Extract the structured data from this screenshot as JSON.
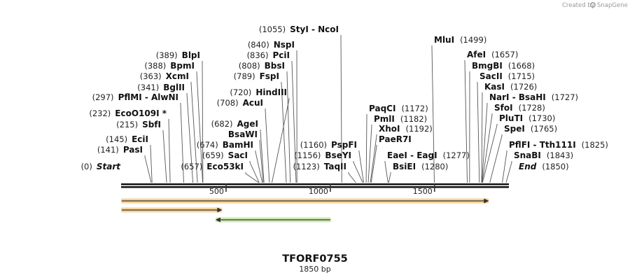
{
  "credit": {
    "text": "Created by",
    "brand": "SnapGene"
  },
  "plasmid": {
    "name": "TFORF0755",
    "length_label": "1850 bp",
    "length": 1850
  },
  "axis": {
    "ticks": [
      {
        "pos": 500,
        "label": "500"
      },
      {
        "pos": 1000,
        "label": "1000"
      },
      {
        "pos": 1500,
        "label": "1500"
      }
    ]
  },
  "colors": {
    "backbone": "#111111",
    "feature_orange": "#e8a33a",
    "feature_green": "#7ac943",
    "tick": "#444444"
  },
  "sites": [
    {
      "name": "Start",
      "label": "(0)",
      "pos": 0,
      "style": "italic",
      "side": "right"
    },
    {
      "name": "PasI",
      "label": "(141)",
      "pos": 141,
      "side": "right"
    },
    {
      "name": "EciI",
      "label": "(145)",
      "pos": 145,
      "side": "right"
    },
    {
      "name": "SbfI",
      "label": "(215)",
      "pos": 215,
      "side": "right"
    },
    {
      "name": "EcoO109I *",
      "label": "(232)",
      "pos": 232,
      "side": "right"
    },
    {
      "name": "PflMI  - AlwNI",
      "label": "(297)",
      "pos": 297,
      "side": "right"
    },
    {
      "name": "BglII",
      "label": "(341)",
      "pos": 341,
      "side": "right"
    },
    {
      "name": "XcmI",
      "label": "(363)",
      "pos": 363,
      "side": "right"
    },
    {
      "name": "BpmI",
      "label": "(388)",
      "pos": 388,
      "side": "right"
    },
    {
      "name": "BlpI",
      "label": "(389)",
      "pos": 389,
      "side": "right"
    },
    {
      "name": "Eco53kI",
      "label": "(657)",
      "pos": 657,
      "side": "right"
    },
    {
      "name": "SacI",
      "label": "(659)",
      "pos": 659,
      "side": "right"
    },
    {
      "name": "BamHI",
      "label": "(674)",
      "pos": 674,
      "side": "right"
    },
    {
      "name": "BsaWI",
      "label": "",
      "pos": 678,
      "side": "right"
    },
    {
      "name": "AgeI",
      "label": "(682)",
      "pos": 682,
      "side": "right"
    },
    {
      "name": "AcuI",
      "label": "(708)",
      "pos": 708,
      "side": "right"
    },
    {
      "name": "HindIII",
      "label": "(720)",
      "pos": 720,
      "side": "right"
    },
    {
      "name": "FspI",
      "label": "(789)",
      "pos": 789,
      "side": "right"
    },
    {
      "name": "BbsI",
      "label": "(808)",
      "pos": 808,
      "side": "right"
    },
    {
      "name": "PciI",
      "label": "(836)",
      "pos": 836,
      "side": "right"
    },
    {
      "name": "NspI",
      "label": "(840)",
      "pos": 840,
      "side": "right"
    },
    {
      "name": "StyI  - NcoI",
      "label": "(1055)",
      "pos": 1055,
      "side": "right"
    },
    {
      "name": "TaqII",
      "label": "(1123)",
      "pos": 1123,
      "side": "right"
    },
    {
      "name": "BseYI",
      "label": "(1156)",
      "pos": 1156,
      "side": "right"
    },
    {
      "name": "PspFI",
      "label": "(1160)",
      "pos": 1160,
      "side": "right"
    },
    {
      "name": "PaqCI",
      "label": "(1172)",
      "pos": 1172,
      "side": "left"
    },
    {
      "name": "PmlI",
      "label": "(1182)",
      "pos": 1182,
      "side": "left"
    },
    {
      "name": "XhoI",
      "label": "(1192)",
      "pos": 1192,
      "side": "left"
    },
    {
      "name": "PaeR7I",
      "label": "",
      "pos": 1196,
      "side": "left"
    },
    {
      "name": "EaeI  - EagI",
      "label": "(1277)",
      "pos": 1277,
      "side": "left"
    },
    {
      "name": "BsiEI",
      "label": "(1280)",
      "pos": 1280,
      "side": "left"
    },
    {
      "name": "MluI",
      "label": "(1499)",
      "pos": 1499,
      "side": "left"
    },
    {
      "name": "AfeI",
      "label": "(1657)",
      "pos": 1657,
      "side": "left"
    },
    {
      "name": "BmgBI",
      "label": "(1668)",
      "pos": 1668,
      "side": "left"
    },
    {
      "name": "SacII",
      "label": "(1715)",
      "pos": 1715,
      "side": "left"
    },
    {
      "name": "KasI",
      "label": "(1726)",
      "pos": 1726,
      "side": "left"
    },
    {
      "name": "NarI  - BsaHI",
      "label": "(1727)",
      "pos": 1727,
      "side": "left"
    },
    {
      "name": "SfoI",
      "label": "(1728)",
      "pos": 1728,
      "side": "left"
    },
    {
      "name": "PluTI",
      "label": "(1730)",
      "pos": 1730,
      "side": "left"
    },
    {
      "name": "SpeI",
      "label": "(1765)",
      "pos": 1765,
      "side": "left"
    },
    {
      "name": "PflFI  - Tth111I",
      "label": "(1825)",
      "pos": 1825,
      "side": "left"
    },
    {
      "name": "SnaBI",
      "label": "(1843)",
      "pos": 1843,
      "side": "left"
    },
    {
      "name": "End",
      "label": "(1850)",
      "pos": 1850,
      "style": "italic",
      "side": "left"
    }
  ],
  "features": [
    {
      "start": 0,
      "end": 1757,
      "direction": "forward",
      "color": "orange"
    },
    {
      "start": 0,
      "end": 478,
      "direction": "forward",
      "color": "orange"
    },
    {
      "start": 453,
      "end": 1000,
      "direction": "reverse",
      "color": "green"
    }
  ]
}
